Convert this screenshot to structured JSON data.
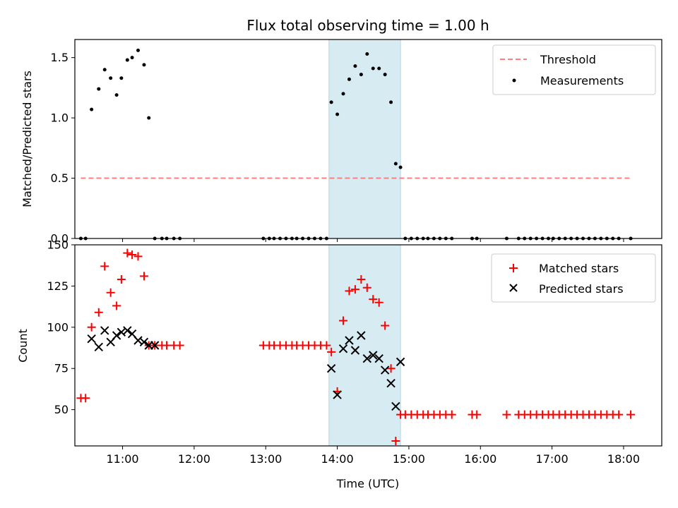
{
  "figure": {
    "title": "Flux total observing time = 1.00 h"
  },
  "colors": {
    "highlight": "#add8e6",
    "threshold": "#ff7f7f",
    "matched": "#ff0000",
    "predicted": "#000000",
    "measurement": "#000000"
  },
  "chart_data": [
    {
      "type": "scatter",
      "panel": "top",
      "ylabel": "Matched/Predicted stars",
      "xlabel": "",
      "xlim": [
        "10:20",
        "18:32"
      ],
      "ylim": [
        0,
        1.65
      ],
      "yticks": [
        "0.0",
        "0.5",
        "1.0",
        "1.5"
      ],
      "ytick_values": [
        0,
        0.5,
        1.0,
        1.5
      ],
      "highlight_span": [
        "13:53",
        "14:53"
      ],
      "legend_position": "top-right",
      "legend": [
        "Threshold",
        "Measurements"
      ],
      "threshold": {
        "name": "Threshold",
        "value": 0.5,
        "x": [
          "10:25",
          "18:05"
        ]
      },
      "measurements": {
        "name": "Measurements",
        "x": [
          "10:25",
          "10:29",
          "10:34",
          "10:40",
          "10:45",
          "10:50",
          "10:55",
          "10:59",
          "11:04",
          "11:08",
          "11:13",
          "11:18",
          "11:22",
          "11:27",
          "11:33",
          "11:37",
          "11:43",
          "11:48",
          "12:58",
          "13:03",
          "13:07",
          "13:12",
          "13:17",
          "13:22",
          "13:26",
          "13:31",
          "13:36",
          "13:41",
          "13:46",
          "13:51",
          "13:55",
          "14:00",
          "14:05",
          "14:10",
          "14:15",
          "14:20",
          "14:25",
          "14:30",
          "14:35",
          "14:40",
          "14:45",
          "14:49",
          "14:53",
          "14:57",
          "15:02",
          "15:07",
          "15:12",
          "15:16",
          "15:21",
          "15:26",
          "15:31",
          "15:36",
          "15:53",
          "15:57",
          "16:22",
          "16:32",
          "16:37",
          "16:42",
          "16:47",
          "16:52",
          "16:57",
          "17:01",
          "17:06",
          "17:11",
          "17:16",
          "17:21",
          "17:26",
          "17:31",
          "17:36",
          "17:41",
          "17:46",
          "17:51",
          "17:56",
          "18:06"
        ],
        "y": [
          0,
          0,
          1.07,
          1.24,
          1.4,
          1.33,
          1.19,
          1.33,
          1.48,
          1.5,
          1.56,
          1.44,
          1.0,
          0,
          0,
          0,
          0,
          0,
          0,
          0,
          0,
          0,
          0,
          0,
          0,
          0,
          0,
          0,
          0,
          0,
          1.13,
          1.03,
          1.2,
          1.32,
          1.43,
          1.36,
          1.53,
          1.41,
          1.41,
          1.36,
          1.13,
          0.62,
          0.59,
          0,
          0,
          0,
          0,
          0,
          0,
          0,
          0,
          0,
          0,
          0,
          0,
          0,
          0,
          0,
          0,
          0,
          0,
          0,
          0,
          0,
          0,
          0,
          0,
          0,
          0,
          0,
          0,
          0,
          0,
          0
        ]
      }
    },
    {
      "type": "scatter",
      "panel": "bottom",
      "xlabel": "Time (UTC)",
      "ylabel": "Count",
      "xlim": [
        "10:20",
        "18:32"
      ],
      "ylim": [
        28,
        150
      ],
      "xticks": [
        "11:00",
        "12:00",
        "13:00",
        "14:00",
        "15:00",
        "16:00",
        "17:00",
        "18:00"
      ],
      "yticks": [
        "50",
        "75",
        "100",
        "125",
        "150"
      ],
      "ytick_values": [
        50,
        75,
        100,
        125,
        150
      ],
      "highlight_span": [
        "13:53",
        "14:53"
      ],
      "legend_position": "top-right",
      "legend": [
        "Matched stars",
        "Predicted stars"
      ],
      "series": [
        {
          "name": "Matched stars",
          "marker": "plus",
          "x": [
            "10:25",
            "10:29",
            "10:34",
            "10:40",
            "10:45",
            "10:50",
            "10:55",
            "10:59",
            "11:04",
            "11:08",
            "11:13",
            "11:18",
            "11:22",
            "11:27",
            "11:33",
            "11:37",
            "11:43",
            "11:48",
            "12:58",
            "13:03",
            "13:07",
            "13:12",
            "13:17",
            "13:22",
            "13:26",
            "13:31",
            "13:36",
            "13:41",
            "13:46",
            "13:51",
            "13:55",
            "14:00",
            "14:05",
            "14:10",
            "14:15",
            "14:20",
            "14:25",
            "14:30",
            "14:35",
            "14:40",
            "14:45",
            "14:49",
            "14:53",
            "14:57",
            "15:02",
            "15:07",
            "15:12",
            "15:16",
            "15:21",
            "15:26",
            "15:31",
            "15:36",
            "15:53",
            "15:57",
            "16:22",
            "16:32",
            "16:37",
            "16:42",
            "16:47",
            "16:52",
            "16:57",
            "17:01",
            "17:06",
            "17:11",
            "17:16",
            "17:21",
            "17:26",
            "17:31",
            "17:36",
            "17:41",
            "17:46",
            "17:51",
            "17:56",
            "18:06"
          ],
          "y": [
            57,
            57,
            100,
            109,
            137,
            121,
            113,
            129,
            145,
            144,
            143,
            131,
            89,
            89,
            89,
            89,
            89,
            89,
            89,
            89,
            89,
            89,
            89,
            89,
            89,
            89,
            89,
            89,
            89,
            89,
            85,
            61,
            104,
            122,
            123,
            129,
            124,
            117,
            115,
            101,
            75,
            31,
            47,
            47,
            47,
            47,
            47,
            47,
            47,
            47,
            47,
            47,
            47,
            47,
            47,
            47,
            47,
            47,
            47,
            47,
            47,
            47,
            47,
            47,
            47,
            47,
            47,
            47,
            47,
            47,
            47,
            47,
            47,
            47
          ]
        },
        {
          "name": "Predicted stars",
          "marker": "x",
          "x": [
            "10:34",
            "10:40",
            "10:45",
            "10:50",
            "10:55",
            "10:59",
            "11:04",
            "11:08",
            "11:13",
            "11:18",
            "11:22",
            "11:27",
            "13:55",
            "14:00",
            "14:05",
            "14:10",
            "14:15",
            "14:20",
            "14:25",
            "14:30",
            "14:35",
            "14:40",
            "14:45",
            "14:49",
            "14:53"
          ],
          "y": [
            93,
            88,
            98,
            91,
            95,
            97,
            98,
            96,
            92,
            91,
            89,
            89,
            75,
            59,
            87,
            92,
            86,
            95,
            81,
            83,
            81,
            74,
            66,
            52,
            79
          ]
        }
      ]
    }
  ]
}
